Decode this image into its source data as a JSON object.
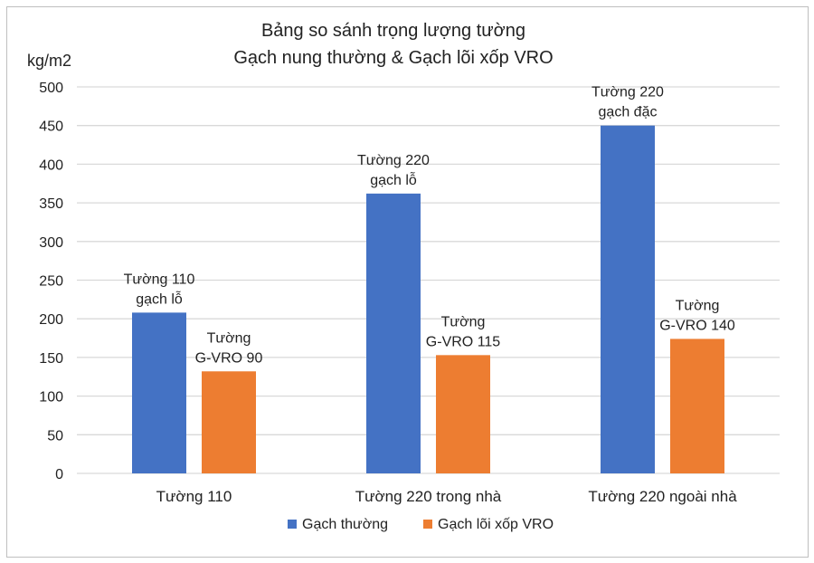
{
  "chart_data": {
    "type": "bar",
    "title_lines": [
      "Bảng so sánh trọng lượng tường",
      "Gạch nung thường & Gạch lõi xốp VRO"
    ],
    "ylabel": "kg/m2",
    "xlabel": "",
    "ylim": [
      0,
      500
    ],
    "yticks": [
      0,
      50,
      100,
      150,
      200,
      250,
      300,
      350,
      400,
      450,
      500
    ],
    "grid": true,
    "legend_position": "bottom",
    "categories": [
      "Tường 110",
      "Tường 220 trong nhà",
      "Tường 220 ngoài nhà"
    ],
    "series": [
      {
        "name": "Gạch thường",
        "color": "#4472C4",
        "values": [
          208,
          362,
          450
        ],
        "labels": [
          [
            "Tường 110",
            "gạch lỗ"
          ],
          [
            "Tường 220",
            "gạch lỗ"
          ],
          [
            "Tường 220",
            "gạch đặc"
          ]
        ]
      },
      {
        "name": "Gạch lõi xốp VRO",
        "color": "#ED7D31",
        "values": [
          132,
          153,
          174
        ],
        "labels": [
          [
            "Tường",
            "G-VRO 90"
          ],
          [
            "Tường",
            "G-VRO 115"
          ],
          [
            "Tường",
            "G-VRO 140"
          ]
        ]
      }
    ]
  }
}
